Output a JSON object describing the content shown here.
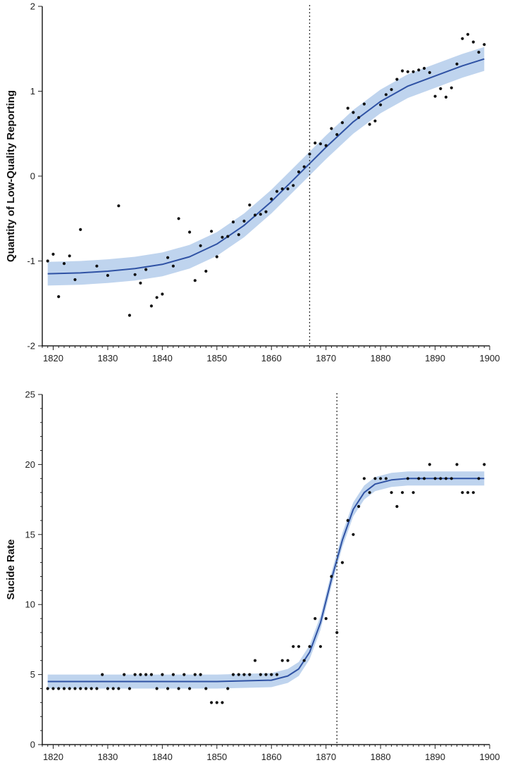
{
  "colors": {
    "line": "#2f52a4",
    "band": "#bfd4ee",
    "point": "#111111",
    "axis": "#222222",
    "vline": "#333333"
  },
  "chart_data": [
    {
      "type": "scatter",
      "title": "",
      "xlabel": "",
      "ylabel": "Quantity of Low-Quality Reporting",
      "xlim": [
        1818,
        1900
      ],
      "ylim": [
        -2,
        2
      ],
      "xticks": [
        "1820",
        "1830",
        "1840",
        "1850",
        "1860",
        "1870",
        "1880",
        "1890",
        "1900"
      ],
      "yticks": [
        "-2",
        "-1",
        "0",
        "1",
        "2"
      ],
      "vline_x": 1867,
      "series": [
        {
          "name": "observed",
          "points": [
            [
              1819,
              -1.0
            ],
            [
              1820,
              -0.92
            ],
            [
              1821,
              -1.42
            ],
            [
              1822,
              -1.03
            ],
            [
              1823,
              -0.94
            ],
            [
              1824,
              -1.22
            ],
            [
              1825,
              -0.63
            ],
            [
              1828,
              -1.06
            ],
            [
              1830,
              -1.17
            ],
            [
              1832,
              -0.35
            ],
            [
              1834,
              -1.64
            ],
            [
              1835,
              -1.16
            ],
            [
              1836,
              -1.26
            ],
            [
              1837,
              -1.1
            ],
            [
              1838,
              -1.53
            ],
            [
              1839,
              -1.43
            ],
            [
              1840,
              -1.39
            ],
            [
              1841,
              -0.96
            ],
            [
              1842,
              -1.06
            ],
            [
              1843,
              -0.5
            ],
            [
              1845,
              -0.66
            ],
            [
              1846,
              -1.23
            ],
            [
              1847,
              -0.82
            ],
            [
              1848,
              -1.12
            ],
            [
              1849,
              -0.65
            ],
            [
              1850,
              -0.95
            ],
            [
              1851,
              -0.72
            ],
            [
              1852,
              -0.71
            ],
            [
              1853,
              -0.54
            ],
            [
              1854,
              -0.69
            ],
            [
              1855,
              -0.53
            ],
            [
              1856,
              -0.34
            ],
            [
              1857,
              -0.46
            ],
            [
              1858,
              -0.45
            ],
            [
              1859,
              -0.42
            ],
            [
              1860,
              -0.27
            ],
            [
              1861,
              -0.18
            ],
            [
              1862,
              -0.15
            ],
            [
              1863,
              -0.15
            ],
            [
              1864,
              -0.11
            ],
            [
              1865,
              0.05
            ],
            [
              1866,
              0.11
            ],
            [
              1867,
              0.26
            ],
            [
              1868,
              0.39
            ],
            [
              1869,
              0.38
            ],
            [
              1870,
              0.36
            ],
            [
              1871,
              0.56
            ],
            [
              1872,
              0.49
            ],
            [
              1873,
              0.63
            ],
            [
              1874,
              0.8
            ],
            [
              1875,
              0.75
            ],
            [
              1876,
              0.69
            ],
            [
              1877,
              0.85
            ],
            [
              1878,
              0.61
            ],
            [
              1879,
              0.65
            ],
            [
              1880,
              0.84
            ],
            [
              1881,
              0.96
            ],
            [
              1882,
              1.02
            ],
            [
              1883,
              1.14
            ],
            [
              1884,
              1.24
            ],
            [
              1885,
              1.23
            ],
            [
              1886,
              1.23
            ],
            [
              1887,
              1.25
            ],
            [
              1888,
              1.27
            ],
            [
              1889,
              1.22
            ],
            [
              1890,
              0.94
            ],
            [
              1891,
              1.03
            ],
            [
              1892,
              0.93
            ],
            [
              1893,
              1.04
            ],
            [
              1894,
              1.32
            ],
            [
              1895,
              1.62
            ],
            [
              1896,
              1.67
            ],
            [
              1897,
              1.58
            ],
            [
              1898,
              1.46
            ],
            [
              1899,
              1.55
            ]
          ]
        },
        {
          "name": "fit",
          "model": "logistic",
          "x": [
            1819,
            1825,
            1830,
            1835,
            1840,
            1845,
            1850,
            1855,
            1860,
            1865,
            1870,
            1875,
            1880,
            1885,
            1890,
            1895,
            1899
          ],
          "y": [
            -1.15,
            -1.14,
            -1.12,
            -1.09,
            -1.04,
            -0.95,
            -0.8,
            -0.58,
            -0.3,
            0.02,
            0.34,
            0.64,
            0.88,
            1.06,
            1.18,
            1.3,
            1.38
          ],
          "band_halfwidth": 0.14
        }
      ]
    },
    {
      "type": "scatter",
      "title": "",
      "xlabel": "",
      "ylabel": "Sucide Rate",
      "xlim": [
        1818,
        1900
      ],
      "ylim": [
        0,
        25
      ],
      "xticks": [
        "1820",
        "1830",
        "1840",
        "1850",
        "1860",
        "1870",
        "1880",
        "1890",
        "1900"
      ],
      "yticks": [
        "0",
        "5",
        "10",
        "15",
        "20",
        "25"
      ],
      "vline_x": 1872,
      "series": [
        {
          "name": "observed",
          "points": [
            [
              1819,
              4
            ],
            [
              1820,
              4
            ],
            [
              1821,
              4
            ],
            [
              1822,
              4
            ],
            [
              1823,
              4
            ],
            [
              1824,
              4
            ],
            [
              1825,
              4
            ],
            [
              1826,
              4
            ],
            [
              1827,
              4
            ],
            [
              1828,
              4
            ],
            [
              1829,
              5
            ],
            [
              1830,
              4
            ],
            [
              1831,
              4
            ],
            [
              1832,
              4
            ],
            [
              1833,
              5
            ],
            [
              1834,
              4
            ],
            [
              1835,
              5
            ],
            [
              1836,
              5
            ],
            [
              1837,
              5
            ],
            [
              1838,
              5
            ],
            [
              1839,
              4
            ],
            [
              1840,
              5
            ],
            [
              1841,
              4
            ],
            [
              1842,
              5
            ],
            [
              1843,
              4
            ],
            [
              1844,
              5
            ],
            [
              1845,
              4
            ],
            [
              1846,
              5
            ],
            [
              1847,
              5
            ],
            [
              1848,
              4
            ],
            [
              1849,
              3
            ],
            [
              1850,
              3
            ],
            [
              1851,
              3
            ],
            [
              1852,
              4
            ],
            [
              1853,
              5
            ],
            [
              1854,
              5
            ],
            [
              1855,
              5
            ],
            [
              1856,
              5
            ],
            [
              1857,
              6
            ],
            [
              1858,
              5
            ],
            [
              1859,
              5
            ],
            [
              1860,
              5
            ],
            [
              1861,
              5
            ],
            [
              1862,
              6
            ],
            [
              1863,
              6
            ],
            [
              1864,
              7
            ],
            [
              1865,
              7
            ],
            [
              1866,
              6
            ],
            [
              1867,
              7
            ],
            [
              1868,
              9
            ],
            [
              1869,
              7
            ],
            [
              1870,
              9
            ],
            [
              1871,
              12
            ],
            [
              1872,
              8
            ],
            [
              1873,
              13
            ],
            [
              1874,
              16
            ],
            [
              1875,
              15
            ],
            [
              1876,
              17
            ],
            [
              1877,
              19
            ],
            [
              1878,
              18
            ],
            [
              1879,
              19
            ],
            [
              1880,
              19
            ],
            [
              1881,
              19
            ],
            [
              1882,
              18
            ],
            [
              1883,
              17
            ],
            [
              1884,
              18
            ],
            [
              1885,
              19
            ],
            [
              1886,
              18
            ],
            [
              1887,
              19
            ],
            [
              1888,
              19
            ],
            [
              1889,
              20
            ],
            [
              1890,
              19
            ],
            [
              1891,
              19
            ],
            [
              1892,
              19
            ],
            [
              1893,
              19
            ],
            [
              1894,
              20
            ],
            [
              1895,
              18
            ],
            [
              1896,
              18
            ],
            [
              1897,
              18
            ],
            [
              1898,
              19
            ],
            [
              1899,
              20
            ]
          ]
        },
        {
          "name": "fit",
          "model": "logistic",
          "x": [
            1819,
            1850,
            1860,
            1863,
            1865,
            1867,
            1869,
            1871,
            1872,
            1873,
            1875,
            1877,
            1879,
            1882,
            1885,
            1890,
            1899
          ],
          "y": [
            4.5,
            4.5,
            4.6,
            4.9,
            5.4,
            6.6,
            8.7,
            11.8,
            13.2,
            14.6,
            16.8,
            18.0,
            18.6,
            18.9,
            19.0,
            19.0,
            19.0
          ],
          "band_halfwidth": 0.5
        }
      ]
    }
  ]
}
